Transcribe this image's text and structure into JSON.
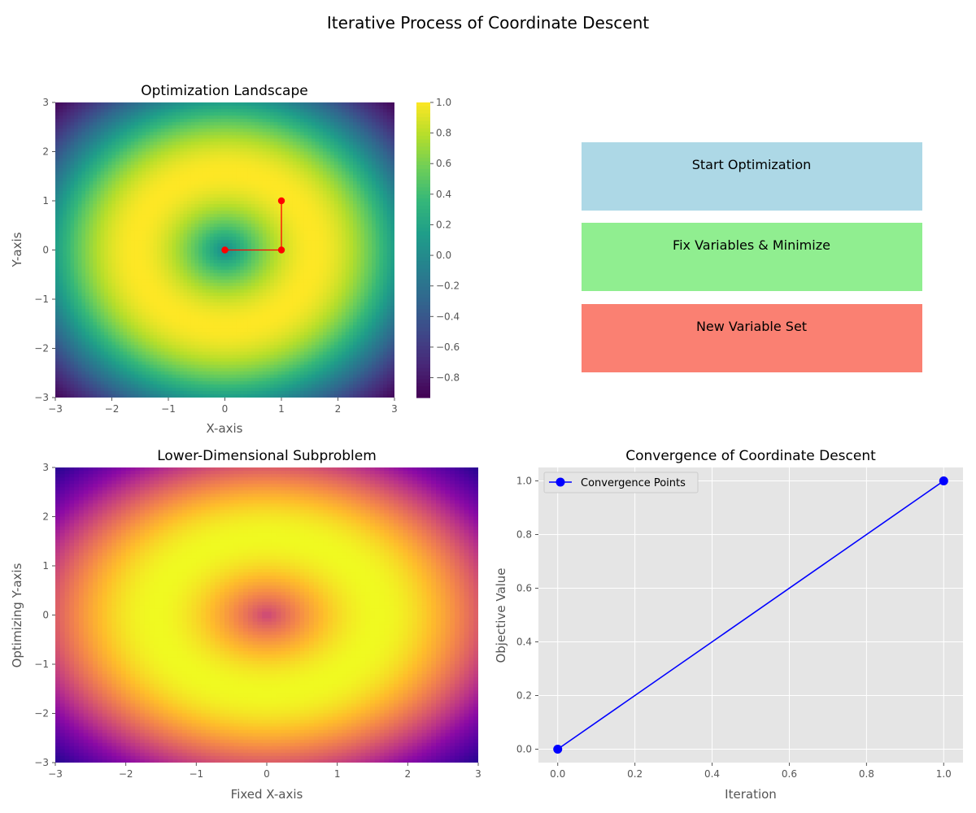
{
  "suptitle": "Iterative Process of Coordinate Descent",
  "colors": {
    "path": "#ff0000",
    "convergence": "#0000ff",
    "plot_bg": "#e5e5e5",
    "grid": "#ffffff",
    "button_start": "#add8e6",
    "button_fix": "#90ee90",
    "button_new": "#fa8072"
  },
  "buttons": [
    {
      "label": "Start Optimization",
      "color": "#add8e6"
    },
    {
      "label": "Fix Variables & Minimize",
      "color": "#90ee90"
    },
    {
      "label": "New Variable Set",
      "color": "#fa8072"
    }
  ],
  "chart_data": [
    {
      "type": "heatmap",
      "title": "Optimization Landscape",
      "xlabel": "X-axis",
      "ylabel": "Y-axis",
      "xlim": [
        -3,
        3
      ],
      "ylim": [
        -3,
        3
      ],
      "xticks": [
        -3,
        -2,
        -1,
        0,
        1,
        2,
        3
      ],
      "yticks": [
        -3,
        -2,
        -1,
        0,
        1,
        2,
        3
      ],
      "function": "sin(sqrt(x^2 + y^2))",
      "colormap": "viridis",
      "colorbar": {
        "range": [
          -0.93,
          1.0
        ],
        "ticks": [
          1.0,
          0.8,
          0.6,
          0.4,
          0.2,
          0.0,
          -0.2,
          -0.4,
          -0.6,
          -0.8
        ],
        "tick_labels": [
          "1.0",
          "0.8",
          "0.6",
          "0.4",
          "0.2",
          "0.0",
          "−0.2",
          "−0.4",
          "−0.6",
          "−0.8"
        ]
      },
      "path": {
        "x": [
          1,
          1,
          0
        ],
        "y": [
          1,
          0,
          0
        ],
        "color": "#ff0000"
      }
    },
    {
      "type": "heatmap",
      "title": "Lower-Dimensional Subproblem",
      "xlabel": "Fixed X-axis",
      "ylabel": "Optimizing Y-axis",
      "xlim": [
        -3,
        3
      ],
      "ylim": [
        -3,
        3
      ],
      "xticks": [
        -3,
        -2,
        -1,
        0,
        1,
        2,
        3
      ],
      "yticks": [
        -3,
        -2,
        -1,
        0,
        1,
        2,
        3
      ],
      "function": "sin(sqrt(x^2 + y^2))",
      "colormap": "plasma"
    },
    {
      "type": "line",
      "title": "Convergence of Coordinate Descent",
      "xlabel": "Iteration",
      "ylabel": "Objective Value",
      "x": [
        0,
        1
      ],
      "series": [
        {
          "name": "Convergence Points",
          "values": [
            0,
            1
          ],
          "color": "#0000ff"
        }
      ],
      "xlim": [
        -0.05,
        1.05
      ],
      "ylim": [
        -0.05,
        1.05
      ],
      "xticks": [
        0.0,
        0.2,
        0.4,
        0.6,
        0.8,
        1.0
      ],
      "yticks": [
        0.0,
        0.2,
        0.4,
        0.6,
        0.8,
        1.0
      ],
      "grid": true,
      "legend": "upper-left"
    }
  ]
}
